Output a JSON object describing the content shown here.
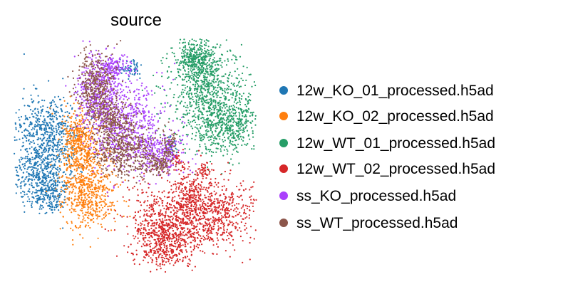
{
  "chart_data": {
    "type": "scatter",
    "title": "source",
    "xlabel": "",
    "ylabel": "",
    "grid": false,
    "axes_visible": false,
    "legend_position": "right",
    "series": [
      {
        "name": "12w_KO_01_processed.h5ad",
        "color": "#1f77b4"
      },
      {
        "name": "12w_KO_02_processed.h5ad",
        "color": "#ff7f0e"
      },
      {
        "name": "12w_WT_01_processed.h5ad",
        "color": "#279e68"
      },
      {
        "name": "12w_WT_02_processed.h5ad",
        "color": "#d62728"
      },
      {
        "name": "ss_KO_processed.h5ad",
        "color": "#aa40fc"
      },
      {
        "name": "ss_WT_processed.h5ad",
        "color": "#8c564b"
      }
    ]
  }
}
